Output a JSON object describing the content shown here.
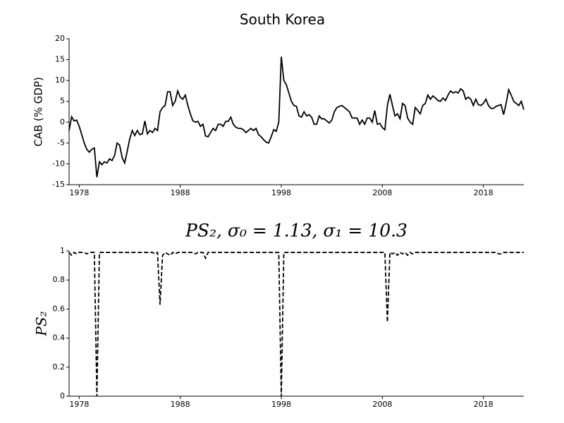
{
  "chart_data": [
    {
      "type": "line",
      "title": "South Korea",
      "ylabel": "CAB (% GDP)",
      "xlim": [
        1977,
        2022
      ],
      "xticks": [
        1978,
        1988,
        1998,
        2008,
        2018
      ],
      "ylim": [
        -15,
        20
      ],
      "yticks": [
        -15,
        -10,
        -5,
        0,
        5,
        10,
        15,
        20
      ],
      "linestyle": "solid",
      "x": [
        1977,
        1977.25,
        1977.5,
        1977.75,
        1978,
        1978.25,
        1978.5,
        1978.75,
        1979,
        1979.25,
        1979.5,
        1979.75,
        1980,
        1980.25,
        1980.5,
        1980.75,
        1981,
        1981.25,
        1981.5,
        1981.75,
        1982,
        1982.25,
        1982.5,
        1982.75,
        1983,
        1983.25,
        1983.5,
        1983.75,
        1984,
        1984.25,
        1984.5,
        1984.75,
        1985,
        1985.25,
        1985.5,
        1985.75,
        1986,
        1986.25,
        1986.5,
        1986.75,
        1987,
        1987.25,
        1987.5,
        1987.75,
        1988,
        1988.25,
        1988.5,
        1988.75,
        1989,
        1989.25,
        1989.5,
        1989.75,
        1990,
        1990.25,
        1990.5,
        1990.75,
        1991,
        1991.25,
        1991.5,
        1991.75,
        1992,
        1992.25,
        1992.5,
        1992.75,
        1993,
        1993.25,
        1993.5,
        1993.75,
        1994,
        1994.25,
        1994.5,
        1994.75,
        1995,
        1995.25,
        1995.5,
        1995.75,
        1996,
        1996.25,
        1996.5,
        1996.75,
        1997,
        1997.25,
        1997.5,
        1997.75,
        1998,
        1998.25,
        1998.5,
        1998.75,
        1999,
        1999.25,
        1999.5,
        1999.75,
        2000,
        2000.25,
        2000.5,
        2000.75,
        2001,
        2001.25,
        2001.5,
        2001.75,
        2002,
        2002.25,
        2002.5,
        2002.75,
        2003,
        2003.25,
        2003.5,
        2003.75,
        2004,
        2004.25,
        2004.5,
        2004.75,
        2005,
        2005.25,
        2005.5,
        2005.75,
        2006,
        2006.25,
        2006.5,
        2006.75,
        2007,
        2007.25,
        2007.5,
        2007.75,
        2008,
        2008.25,
        2008.5,
        2008.75,
        2009,
        2009.25,
        2009.5,
        2009.75,
        2010,
        2010.25,
        2010.5,
        2010.75,
        2011,
        2011.25,
        2011.5,
        2011.75,
        2012,
        2012.25,
        2012.5,
        2012.75,
        2013,
        2013.25,
        2013.5,
        2013.75,
        2014,
        2014.25,
        2014.5,
        2014.75,
        2015,
        2015.25,
        2015.5,
        2015.75,
        2016,
        2016.25,
        2016.5,
        2016.75,
        2017,
        2017.25,
        2017.5,
        2017.75,
        2018,
        2018.25,
        2018.5,
        2018.75,
        2019,
        2019.25,
        2019.5,
        2019.75,
        2020,
        2020.25,
        2020.5,
        2020.75,
        2021,
        2021.25,
        2021.5,
        2021.75,
        2022
      ],
      "series": [
        {
          "name": "CAB",
          "color": "#000000",
          "values": [
            -2,
            1.3,
            0.3,
            0.5,
            -1,
            -3,
            -5,
            -6.5,
            -7.2,
            -6.5,
            -6.2,
            -13.2,
            -9.5,
            -10.2,
            -9.5,
            -9.8,
            -8.8,
            -9.2,
            -8,
            -5,
            -5.5,
            -8.5,
            -9.8,
            -7,
            -4,
            -2,
            -3.2,
            -2,
            -3,
            -2.8,
            0.3,
            -2.8,
            -2,
            -2.5,
            -1.5,
            -2,
            2.5,
            3.5,
            4,
            7.3,
            7.3,
            4,
            5,
            7.5,
            6,
            5.5,
            6.5,
            4,
            2,
            0.3,
            0,
            0.2,
            -1,
            -0.5,
            -3.3,
            -3.5,
            -2.5,
            -1.5,
            -2,
            -0.5,
            -0.5,
            -1,
            0.2,
            0.2,
            1.2,
            -0.5,
            -1.2,
            -1.5,
            -1.5,
            -1.8,
            -2.5,
            -2,
            -1.5,
            -2,
            -1.5,
            -3,
            -3.5,
            -4.2,
            -4.8,
            -5,
            -3.5,
            -1.8,
            -2.2,
            0,
            15.7,
            10,
            9,
            7,
            5,
            4,
            3.8,
            1.5,
            1.2,
            2.5,
            1.5,
            1.8,
            1.2,
            -0.5,
            -0.5,
            1.5,
            0.8,
            0.8,
            0.3,
            -0.2,
            0.5,
            2.5,
            3.5,
            3.8,
            4,
            3.5,
            3,
            2.5,
            1,
            1,
            1,
            -0.5,
            0.5,
            -0.5,
            1,
            1,
            0,
            2.8,
            -0.5,
            -0.3,
            -1.3,
            -1.8,
            4,
            6.7,
            4,
            1.5,
            2,
            0.8,
            4.5,
            4,
            1,
            0,
            -0.5,
            3.5,
            2.8,
            2,
            4,
            4.5,
            6.5,
            5.5,
            6.3,
            5.8,
            5.2,
            5,
            5.8,
            5.2,
            6.5,
            7.5,
            7,
            7.3,
            7,
            8,
            7.5,
            5.5,
            6,
            5.5,
            4,
            5.5,
            4.2,
            4,
            4.5,
            5.5,
            4,
            3.3,
            3.3,
            3.8,
            4,
            4.2,
            1.8,
            4.5,
            7.8,
            6.5,
            5,
            4.5,
            4,
            5,
            3
          ]
        }
      ]
    },
    {
      "type": "line",
      "title": "PS₂, σ₀ = 1.13, σ₁ = 10.3",
      "ylabel": "PS₂",
      "xlim": [
        1977,
        2022
      ],
      "xticks": [
        1978,
        1988,
        1998,
        2008,
        2018
      ],
      "ylim": [
        0,
        1
      ],
      "yticks": [
        0,
        0.2,
        0.4,
        0.6,
        0.8,
        1
      ],
      "linestyle": "dashed",
      "x": [
        1977,
        1977.25,
        1977.5,
        1977.75,
        1978,
        1978.25,
        1978.5,
        1978.75,
        1979,
        1979.25,
        1979.5,
        1979.75,
        1980,
        1980.25,
        1980.5,
        1980.75,
        1981,
        1981.25,
        1981.5,
        1981.75,
        1982,
        1982.25,
        1982.5,
        1982.75,
        1983,
        1983.25,
        1983.5,
        1983.75,
        1984,
        1984.25,
        1984.5,
        1984.75,
        1985,
        1985.25,
        1985.5,
        1985.75,
        1986,
        1986.25,
        1986.5,
        1986.75,
        1987,
        1987.25,
        1987.5,
        1987.75,
        1988,
        1988.25,
        1988.5,
        1988.75,
        1989,
        1989.25,
        1989.5,
        1989.75,
        1990,
        1990.25,
        1990.5,
        1990.75,
        1991,
        1991.25,
        1991.5,
        1991.75,
        1992,
        1992.25,
        1992.5,
        1992.75,
        1993,
        1993.25,
        1993.5,
        1993.75,
        1994,
        1994.25,
        1994.5,
        1994.75,
        1995,
        1995.25,
        1995.5,
        1995.75,
        1996,
        1996.25,
        1996.5,
        1996.75,
        1997,
        1997.25,
        1997.5,
        1997.75,
        1998,
        1998.25,
        1998.5,
        1998.75,
        1999,
        1999.25,
        1999.5,
        1999.75,
        2000,
        2000.25,
        2000.5,
        2000.75,
        2001,
        2001.25,
        2001.5,
        2001.75,
        2002,
        2002.25,
        2002.5,
        2002.75,
        2003,
        2003.25,
        2003.5,
        2003.75,
        2004,
        2004.25,
        2004.5,
        2004.75,
        2005,
        2005.25,
        2005.5,
        2005.75,
        2006,
        2006.25,
        2006.5,
        2006.75,
        2007,
        2007.25,
        2007.5,
        2007.75,
        2008,
        2008.25,
        2008.5,
        2008.75,
        2009,
        2009.25,
        2009.5,
        2009.75,
        2010,
        2010.25,
        2010.5,
        2010.75,
        2011,
        2011.25,
        2011.5,
        2011.75,
        2012,
        2012.25,
        2012.5,
        2012.75,
        2013,
        2013.25,
        2013.5,
        2013.75,
        2014,
        2014.25,
        2014.5,
        2014.75,
        2015,
        2015.25,
        2015.5,
        2015.75,
        2016,
        2016.25,
        2016.5,
        2016.75,
        2017,
        2017.25,
        2017.5,
        2017.75,
        2018,
        2018.25,
        2018.5,
        2018.75,
        2019,
        2019.25,
        2019.5,
        2019.75,
        2020,
        2020.25,
        2020.5,
        2020.75,
        2021,
        2021.25,
        2021.5,
        2021.75,
        2022
      ],
      "series": [
        {
          "name": "PS₂",
          "color": "#000000",
          "values": [
            0.99,
            0.97,
            0.99,
            0.98,
            0.99,
            0.99,
            0.99,
            0.98,
            0.99,
            0.99,
            0.99,
            0,
            0.99,
            0.99,
            0.99,
            0.99,
            0.99,
            0.99,
            0.99,
            0.99,
            0.99,
            0.99,
            0.99,
            0.99,
            0.99,
            0.99,
            0.99,
            0.99,
            0.99,
            0.99,
            0.99,
            0.99,
            0.99,
            0.99,
            0.98,
            0.99,
            0.63,
            0.97,
            0.99,
            0.98,
            0.97,
            0.99,
            0.98,
            0.99,
            0.99,
            0.99,
            0.99,
            0.99,
            0.99,
            0.99,
            0.98,
            0.99,
            0.99,
            0.99,
            0.95,
            0.99,
            0.99,
            0.99,
            0.99,
            0.99,
            0.99,
            0.99,
            0.99,
            0.99,
            0.99,
            0.99,
            0.99,
            0.99,
            0.99,
            0.99,
            0.99,
            0.99,
            0.99,
            0.99,
            0.99,
            0.99,
            0.99,
            0.99,
            0.99,
            0.99,
            0.99,
            0.99,
            0.99,
            0.99,
            0,
            0.99,
            0.99,
            0.99,
            0.99,
            0.99,
            0.99,
            0.99,
            0.99,
            0.99,
            0.99,
            0.99,
            0.99,
            0.99,
            0.99,
            0.99,
            0.99,
            0.99,
            0.99,
            0.99,
            0.99,
            0.99,
            0.99,
            0.99,
            0.99,
            0.99,
            0.99,
            0.99,
            0.99,
            0.99,
            0.99,
            0.99,
            0.99,
            0.99,
            0.99,
            0.99,
            0.99,
            0.99,
            0.99,
            0.99,
            0.99,
            0.99,
            0.51,
            0.99,
            0.98,
            0.99,
            0.97,
            0.99,
            0.98,
            0.99,
            0.97,
            0.99,
            0.98,
            0.99,
            0.99,
            0.99,
            0.99,
            0.99,
            0.99,
            0.99,
            0.99,
            0.99,
            0.99,
            0.99,
            0.99,
            0.99,
            0.99,
            0.99,
            0.99,
            0.99,
            0.99,
            0.99,
            0.99,
            0.99,
            0.99,
            0.99,
            0.99,
            0.99,
            0.99,
            0.99,
            0.99,
            0.99,
            0.99,
            0.99,
            0.99,
            0.99,
            0.98,
            0.98,
            0.99,
            0.99,
            0.99,
            0.99,
            0.99,
            0.99,
            0.99,
            0.99,
            0.99
          ]
        }
      ]
    }
  ]
}
